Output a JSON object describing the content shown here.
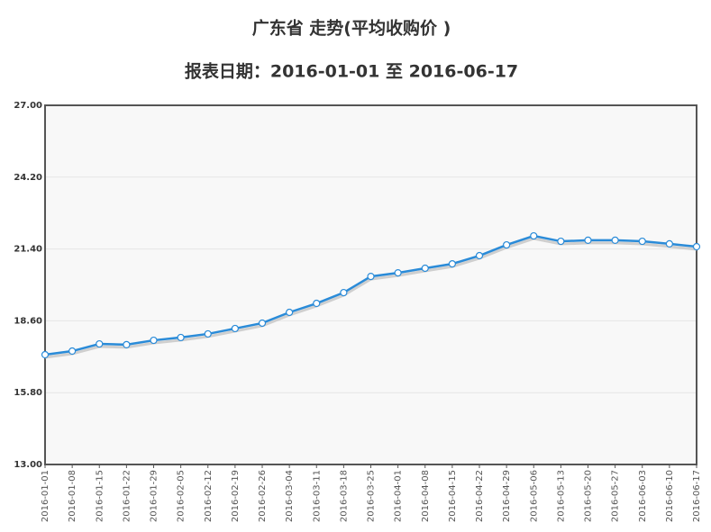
{
  "chart_data": {
    "type": "line",
    "title": "广东省    走势(平均收购价 )",
    "subtitle": "报表日期：2016-01-01 至 2016-06-17",
    "categories": [
      "2016-01-01",
      "2016-01-08",
      "2016-01-15",
      "2016-01-22",
      "2016-01-29",
      "2016-02-05",
      "2016-02-12",
      "2016-02-19",
      "2016-02-26",
      "2016-03-04",
      "2016-03-11",
      "2016-03-18",
      "2016-03-25",
      "2016-04-01",
      "2016-04-08",
      "2016-04-15",
      "2016-04-22",
      "2016-04-29",
      "2016-05-06",
      "2016-05-13",
      "2016-05-20",
      "2016-05-27",
      "2016-06-03",
      "2016-06-10",
      "2016-06-17"
    ],
    "values": [
      17.28,
      17.42,
      17.7,
      17.67,
      17.84,
      17.95,
      18.09,
      18.3,
      18.51,
      18.93,
      19.28,
      19.7,
      20.33,
      20.47,
      20.65,
      20.82,
      21.14,
      21.56,
      21.91,
      21.7,
      21.74,
      21.74,
      21.7,
      21.6,
      21.49
    ],
    "color": "#2a8bd8",
    "ylim": [
      13,
      27
    ],
    "yticks": [
      {
        "value": 13,
        "label": "13.00"
      },
      {
        "value": 15.8,
        "label": "15.80"
      },
      {
        "value": 18.6,
        "label": "18.60"
      },
      {
        "value": 21.4,
        "label": "21.40"
      },
      {
        "value": 24.2,
        "label": "24.20"
      },
      {
        "value": 27,
        "label": "27.00"
      }
    ],
    "grid": true
  }
}
